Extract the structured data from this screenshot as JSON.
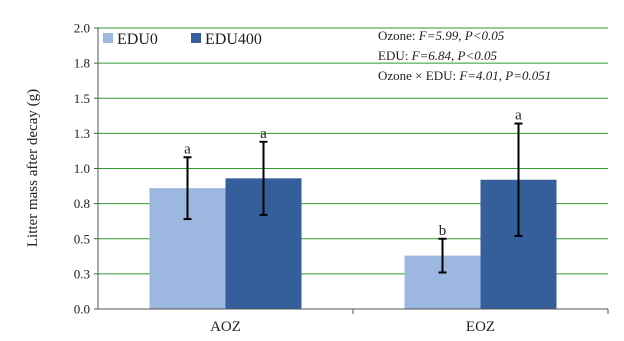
{
  "chart_data": {
    "type": "bar",
    "categories": [
      "AOZ",
      "EOZ"
    ],
    "series": [
      {
        "name": "EDU0",
        "color": "#9db8e0",
        "values": [
          0.86,
          0.38
        ],
        "errors": [
          0.22,
          0.12
        ],
        "labels": [
          "a",
          "b"
        ]
      },
      {
        "name": "EDU400",
        "color": "#355f9a",
        "values": [
          0.93,
          0.92
        ],
        "errors": [
          0.26,
          0.4
        ],
        "labels": [
          "a",
          "a"
        ]
      }
    ],
    "ylabel": "Litter mass after decay (g)",
    "ylim": [
      0,
      2.0
    ],
    "yticks": [
      "0.0",
      "0.3",
      "0.5",
      "0.8",
      "1.0",
      "1.3",
      "1.5",
      "1.8",
      "2.0"
    ],
    "grid": true,
    "legend": "top-left",
    "annotations": {
      "ozone_label": "Ozone: ",
      "ozone_stats": "F=5.99, P<0.05",
      "edu_label": "EDU: ",
      "edu_stats": "F=6.84, P<0.05",
      "interaction_label": "Ozone × EDU: ",
      "interaction_stats": "F=4.01, P=0.051"
    }
  }
}
